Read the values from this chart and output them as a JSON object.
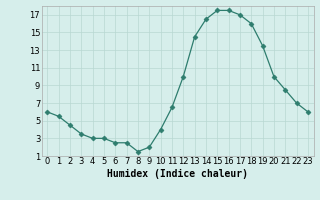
{
  "x": [
    0,
    1,
    2,
    3,
    4,
    5,
    6,
    7,
    8,
    9,
    10,
    11,
    12,
    13,
    14,
    15,
    16,
    17,
    18,
    19,
    20,
    21,
    22,
    23
  ],
  "y": [
    6,
    5.5,
    4.5,
    3.5,
    3,
    3,
    2.5,
    2.5,
    1.5,
    2,
    4,
    6.5,
    10,
    14.5,
    16.5,
    17.5,
    17.5,
    17,
    16,
    13.5,
    10,
    8.5,
    7,
    6
  ],
  "line_color": "#2e7d6e",
  "marker": "D",
  "marker_size": 2.5,
  "bg_color": "#d6eeeb",
  "grid_color": "#b8d8d2",
  "xlabel": "Humidex (Indice chaleur)",
  "xlabel_fontsize": 7,
  "tick_fontsize": 6,
  "xlim": [
    -0.5,
    23.5
  ],
  "ylim": [
    1,
    18
  ],
  "yticks": [
    1,
    3,
    5,
    7,
    9,
    11,
    13,
    15,
    17
  ],
  "xticks": [
    0,
    1,
    2,
    3,
    4,
    5,
    6,
    7,
    8,
    9,
    10,
    11,
    12,
    13,
    14,
    15,
    16,
    17,
    18,
    19,
    20,
    21,
    22,
    23
  ]
}
